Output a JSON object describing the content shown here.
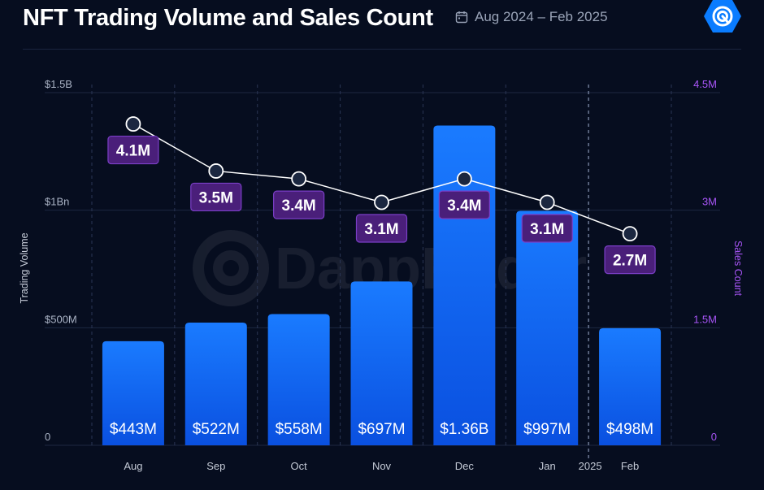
{
  "header": {
    "title": "NFT Trading Volume and Sales Count",
    "date_range": "Aug 2024 – Feb 2025",
    "calendar_icon": "calendar-icon",
    "logo_icon": "dappradar-logo-icon"
  },
  "watermark": "DappRadar",
  "colors": {
    "background": "#060d1f",
    "bar_top": "#1a7bff",
    "bar_bottom": "#0a56e8",
    "label_box": "#4a1f7a",
    "label_border": "#7b3fc7",
    "line": "#ffffff",
    "right_axis": "#a855f7"
  },
  "chart_data": {
    "type": "bar",
    "categories": [
      "Aug",
      "Sep",
      "Oct",
      "Nov",
      "Dec",
      "Jan",
      "Feb"
    ],
    "year_marker": "2025",
    "xlabel": "",
    "ylabel": "Trading Volume",
    "y2label": "Sales Count",
    "ylim": [
      0,
      1500000000
    ],
    "y2lim": [
      0,
      4500000
    ],
    "yticks": [
      "0",
      "$500M",
      "$1Bn",
      "$1.5B"
    ],
    "y2ticks": [
      "0",
      "1.5M",
      "3M",
      "4.5M"
    ],
    "grid": true,
    "series": [
      {
        "type": "bar",
        "axis": "left",
        "values": [
          443000000,
          522000000,
          558000000,
          697000000,
          1360000000,
          997000000,
          498000000
        ],
        "labels": [
          "$443M",
          "$522M",
          "$558M",
          "$697M",
          "$1.36B",
          "$997M",
          "$498M"
        ]
      },
      {
        "type": "line",
        "axis": "right",
        "values": [
          4100000,
          3500000,
          3400000,
          3100000,
          3400000,
          3100000,
          2700000
        ],
        "labels": [
          "4.1M",
          "3.5M",
          "3.4M",
          "3.1M",
          "3.4M",
          "3.1M",
          "2.7M"
        ]
      }
    ]
  }
}
